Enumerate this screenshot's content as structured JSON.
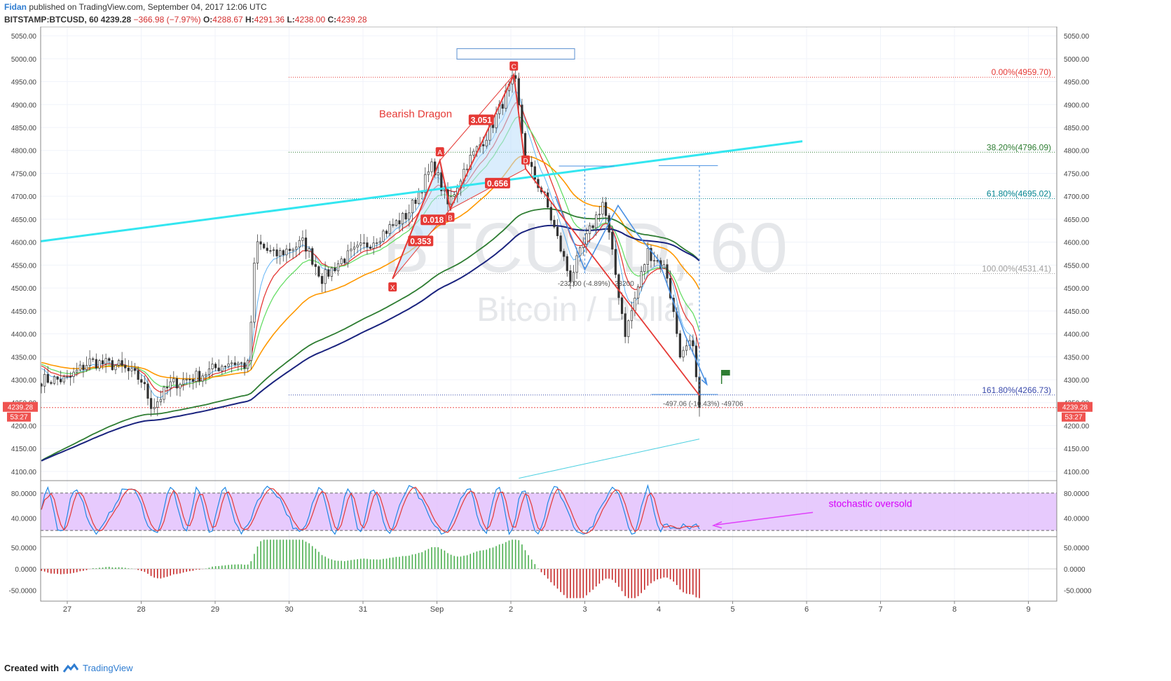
{
  "header": {
    "author": "Fidan",
    "published": "published on TradingView.com, September 04, 2017 12:06 UTC",
    "symbol": "BITSTAMP:BTCUSD, 60",
    "last": "4239.28",
    "change": "−366.98 (−7.97%)",
    "o_label": "O:",
    "o_value": "4288.67",
    "h_label": "H:",
    "h_value": "4291.36",
    "l_label": "L:",
    "l_value": "4238.00",
    "c_label": "C:",
    "c_value": "4239.28"
  },
  "footer": {
    "created": "Created with",
    "brand": "TradingView"
  },
  "colors": {
    "up": "#26a69a",
    "down": "#ef5350",
    "cyan_trend": "#33e6f0",
    "fib_line": "#e57373",
    "ema_orange": "#ff9800",
    "ema_darkgreen": "#2e7d32",
    "ema_navy": "#1a237e",
    "stoch_band": "#e1bdfc",
    "magenta": "#e040fb",
    "pattern_red": "#e53935",
    "pattern_fill": "#bbdefb"
  },
  "chart_data": {
    "type": "candlestick",
    "watermark": {
      "symbol": "BTCUSD, 60",
      "name": "Bitcoin / Dollar"
    },
    "price_axis": {
      "ylim": [
        4080,
        5070
      ],
      "ticks": [
        5050,
        5000,
        4950,
        4900,
        4850,
        4800,
        4750,
        4700,
        4650,
        4600,
        4550,
        4500,
        4450,
        4400,
        4350,
        4300,
        4250,
        4200,
        4150,
        4100
      ]
    },
    "tick_labels": [
      "5050.00",
      "5000.00",
      "4950.00",
      "4900.00",
      "4850.00",
      "4800.00",
      "4750.00",
      "4700.00",
      "4650.00",
      "4600.00",
      "4550.00",
      "4500.00",
      "4450.00",
      "4400.00",
      "4350.00",
      "4300.00",
      "4250.00",
      "4200.00",
      "4150.00",
      "4100.00"
    ],
    "time_axis": {
      "labels": [
        "27",
        "28",
        "29",
        "30",
        "31",
        "Sep",
        "2",
        "3",
        "4",
        "5",
        "6",
        "7",
        "8",
        "9"
      ],
      "day_index": [
        0,
        1,
        2,
        3,
        4,
        5,
        6,
        7,
        8,
        9,
        10,
        11,
        12,
        13
      ]
    },
    "last_price": {
      "value": 4239.28,
      "label": "4239.28",
      "countdown": "53:27"
    },
    "key_points": [
      {
        "day": 0.0,
        "price": 4300
      },
      {
        "day": 0.3,
        "price": 4340
      },
      {
        "day": 0.7,
        "price": 4330
      },
      {
        "day": 1.0,
        "price": 4300
      },
      {
        "day": 1.15,
        "price": 4240
      },
      {
        "day": 1.4,
        "price": 4290
      },
      {
        "day": 1.8,
        "price": 4310
      },
      {
        "day": 2.2,
        "price": 4340
      },
      {
        "day": 2.45,
        "price": 4330
      },
      {
        "day": 2.55,
        "price": 4600
      },
      {
        "day": 2.8,
        "price": 4570
      },
      {
        "day": 3.2,
        "price": 4600
      },
      {
        "day": 3.45,
        "price": 4520
      },
      {
        "day": 3.7,
        "price": 4560
      },
      {
        "day": 4.1,
        "price": 4600
      },
      {
        "day": 4.6,
        "price": 4660
      },
      {
        "day": 4.95,
        "price": 4770
      },
      {
        "day": 5.15,
        "price": 4680
      },
      {
        "day": 5.4,
        "price": 4770
      },
      {
        "day": 5.7,
        "price": 4840
      },
      {
        "day": 6.05,
        "price": 4960
      },
      {
        "day": 6.2,
        "price": 4780
      },
      {
        "day": 6.45,
        "price": 4700
      },
      {
        "day": 6.8,
        "price": 4520
      },
      {
        "day": 7.0,
        "price": 4600
      },
      {
        "day": 7.25,
        "price": 4690
      },
      {
        "day": 7.55,
        "price": 4400
      },
      {
        "day": 7.85,
        "price": 4580
      },
      {
        "day": 8.1,
        "price": 4540
      },
      {
        "day": 8.3,
        "price": 4350
      },
      {
        "day": 8.45,
        "price": 4380
      },
      {
        "day": 8.55,
        "price": 4240
      }
    ],
    "pattern": {
      "title": "Bearish Dragon",
      "points": [
        {
          "label": "X",
          "day": 4.4,
          "price": 4520
        },
        {
          "label": "A",
          "day": 5.04,
          "price": 4778
        },
        {
          "label": "B",
          "day": 5.18,
          "price": 4672
        },
        {
          "label": "C",
          "day": 6.04,
          "price": 4965
        },
        {
          "label": "D",
          "day": 6.2,
          "price": 4760
        }
      ],
      "ratios": [
        {
          "label": "0.353",
          "day": 4.78,
          "price": 4602
        },
        {
          "label": "0.018",
          "day": 4.95,
          "price": 4648
        },
        {
          "label": "3.051",
          "day": 5.6,
          "price": 4866
        },
        {
          "label": "0.656",
          "day": 5.82,
          "price": 4728
        }
      ]
    },
    "fib_levels": [
      {
        "label": "0.00%(4959.70)",
        "price": 4959.7
      },
      {
        "label": "38.20%(4796.09)",
        "price": 4796.09
      },
      {
        "label": "61.80%(4695.02)",
        "price": 4695.02
      },
      {
        "label": "100.00%(4531.41)",
        "price": 4531.41
      },
      {
        "label": "161.80%(4266.73)",
        "price": 4266.73
      }
    ],
    "measures": [
      {
        "label": "-232.00 (-4.89%) -23200",
        "day": 7.15,
        "price": 4505
      },
      {
        "label": "-497.06 (-10.43%) -49706",
        "day": 8.6,
        "price": 4243
      }
    ],
    "stochastic": {
      "ylim": [
        10,
        100
      ],
      "ticks": [
        80,
        40
      ],
      "tick_labels": [
        "80.0000",
        "40.0000"
      ],
      "band": [
        20,
        80
      ],
      "annotation": "stochastic oversold"
    },
    "oscillator": {
      "ylim": [
        -75,
        75
      ],
      "ticks": [
        50,
        0,
        -50
      ],
      "tick_labels": [
        "50.0000",
        "0.0000",
        "-50.0000"
      ]
    }
  }
}
